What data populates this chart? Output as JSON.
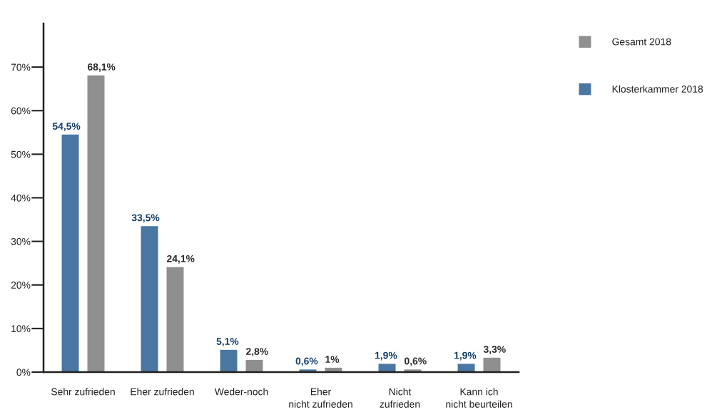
{
  "chart_data": {
    "type": "bar",
    "categories": [
      "Sehr zufrieden",
      "Eher zufrieden",
      "Weder-noch",
      "Eher\nnicht zufrieden",
      "Nicht\nzufrieden",
      "Kann ich\nnicht beurteilen"
    ],
    "series": [
      {
        "name": "Klosterkammer 2018",
        "color": "#4a76a2",
        "values": [
          54.5,
          33.5,
          5.1,
          0.6,
          1.9,
          1.9
        ],
        "value_labels": [
          "54,5%",
          "33,5%",
          "5,1%",
          "0,6%",
          "1,9%",
          "1,9%"
        ]
      },
      {
        "name": "Gesamt 2018",
        "color": "#8f8f8f",
        "values": [
          68.1,
          24.1,
          2.8,
          1,
          0.6,
          3.3
        ],
        "value_labels": [
          "68,1%",
          "24,1%",
          "2,8%",
          "1%",
          "0,6%",
          "3,3%"
        ]
      }
    ],
    "ylim": [
      0,
      80
    ],
    "yticks": [
      {
        "value": 0,
        "label": "0%"
      },
      {
        "value": 10,
        "label": "10%"
      },
      {
        "value": 20,
        "label": "20%"
      },
      {
        "value": 30,
        "label": "30%"
      },
      {
        "value": 40,
        "label": "40%"
      },
      {
        "value": 50,
        "label": "50%"
      },
      {
        "value": 60,
        "label": "60%"
      },
      {
        "value": 70,
        "label": "70%"
      }
    ],
    "legend": "top right"
  }
}
